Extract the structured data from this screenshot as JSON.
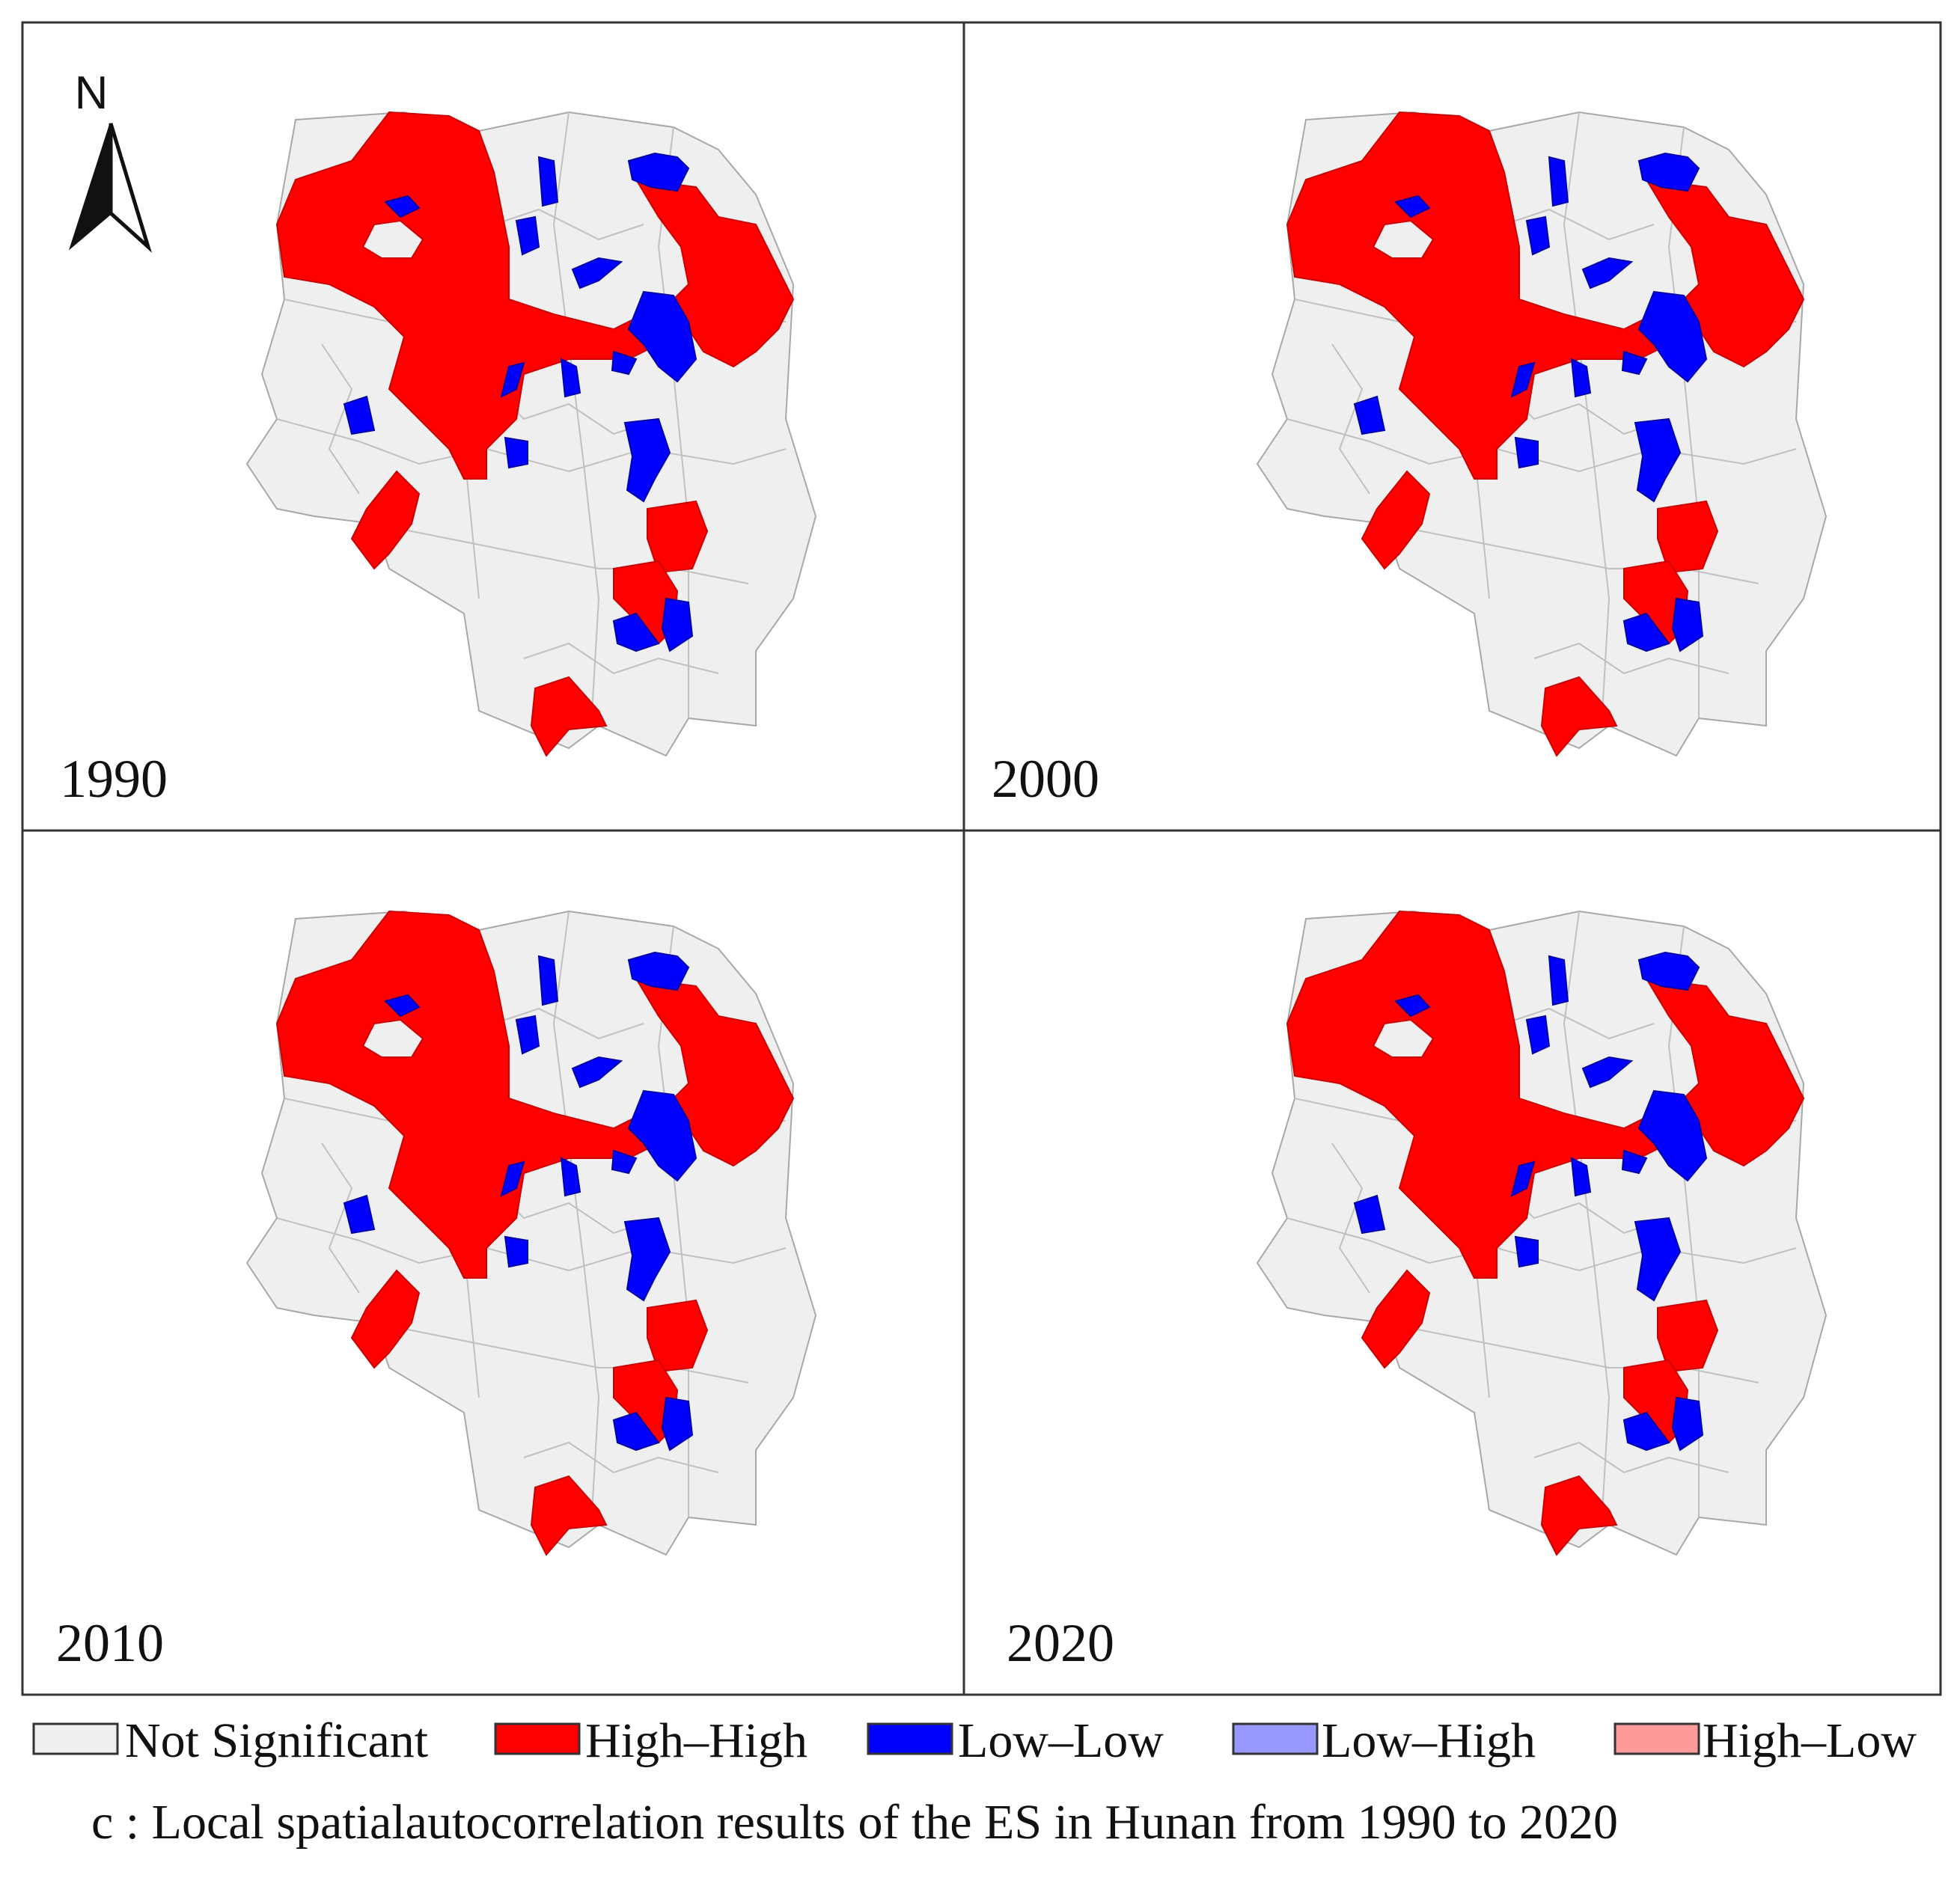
{
  "panels": [
    {
      "label": "1990"
    },
    {
      "label": "2000"
    },
    {
      "label": "2010"
    },
    {
      "label": "2020"
    }
  ],
  "north_arrow": {
    "letter": "N"
  },
  "colors": {
    "not_significant": "#efefef",
    "high_high": "#ff0000",
    "low_low": "#0000ff",
    "low_high": "#9999ff",
    "high_low": "#ff9a9a",
    "boundary": "#a8a8a8",
    "frame": "#333333"
  },
  "legend": [
    {
      "key": "not_significant",
      "label": "Not Significant"
    },
    {
      "key": "high_high",
      "label": "High–High"
    },
    {
      "key": "low_low",
      "label": "Low–Low"
    },
    {
      "key": "low_high",
      "label": "Low–High"
    },
    {
      "key": "high_low",
      "label": "High–Low"
    }
  ],
  "caption": "c : Local spatialautocorrelation results of the ES in Hunan from 1990 to 2020"
}
